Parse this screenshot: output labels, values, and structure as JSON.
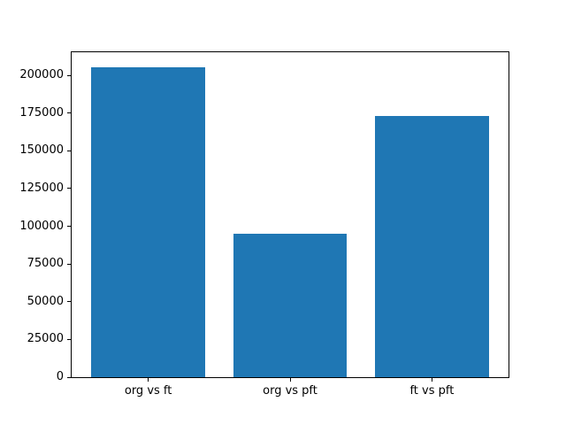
{
  "chart_data": {
    "type": "bar",
    "categories": [
      "org vs ft",
      "org vs pft",
      "ft vs pft"
    ],
    "values": [
      205000,
      95000,
      173000
    ],
    "title": "",
    "xlabel": "",
    "ylabel": "",
    "ylim": [
      0,
      215250
    ],
    "yticks": [
      0,
      25000,
      50000,
      75000,
      100000,
      125000,
      150000,
      175000,
      200000
    ],
    "bar_width_fraction": 0.8,
    "grid": false,
    "legend": null,
    "colors": {
      "bar": "#1f77b4",
      "spine": "#000000",
      "text": "#000000",
      "background": "#ffffff"
    }
  }
}
